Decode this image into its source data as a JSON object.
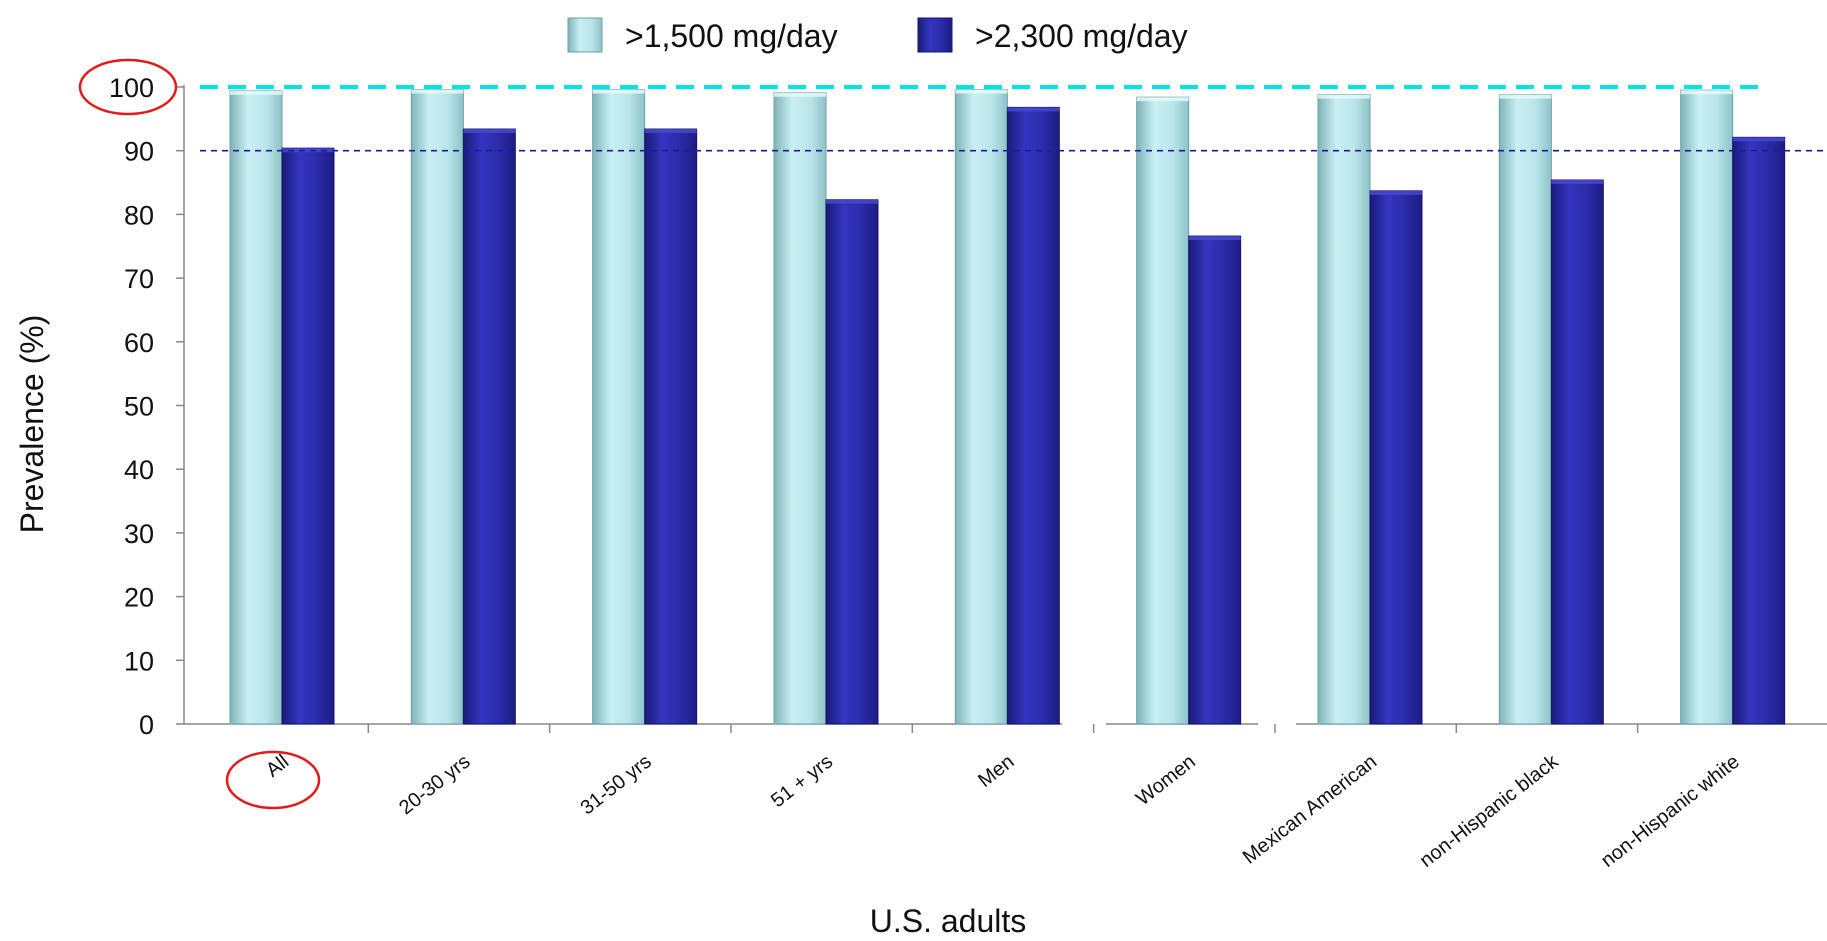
{
  "chart_data": {
    "type": "bar",
    "title": "",
    "xlabel": "U.S. adults",
    "ylabel": "Prevalence (%)",
    "ylim": [
      0,
      100
    ],
    "yticks": [
      "0",
      "10",
      "20",
      "30",
      "40",
      "50",
      "60",
      "70",
      "80",
      "90",
      "100"
    ],
    "categories": [
      "All",
      "20-30 yrs",
      "31-50 yrs",
      "51 + yrs",
      "Men",
      "Women",
      "Mexican American",
      "non-Hispanic black",
      "non-Hispanic white"
    ],
    "series": [
      {
        "name": ">1,500 mg/day",
        "color": "#b8e4e8",
        "values": [
          99.4,
          99.6,
          99.6,
          99.1,
          99.6,
          98.4,
          98.8,
          98.8,
          99.5
        ]
      },
      {
        "name": ">2,300 mg/day",
        "color": "#2a2aa0",
        "values": [
          90.4,
          93.4,
          93.4,
          82.3,
          96.8,
          76.6,
          83.7,
          85.4,
          92.1
        ]
      }
    ],
    "reference_lines": [
      {
        "value": 100,
        "color": "#00e5e5",
        "style": "dashed"
      },
      {
        "value": 90,
        "color": "#1a1aa6",
        "style": "dashed"
      }
    ],
    "highlights": [
      "100",
      "All"
    ],
    "legend_position": "top-center",
    "grid": false
  }
}
